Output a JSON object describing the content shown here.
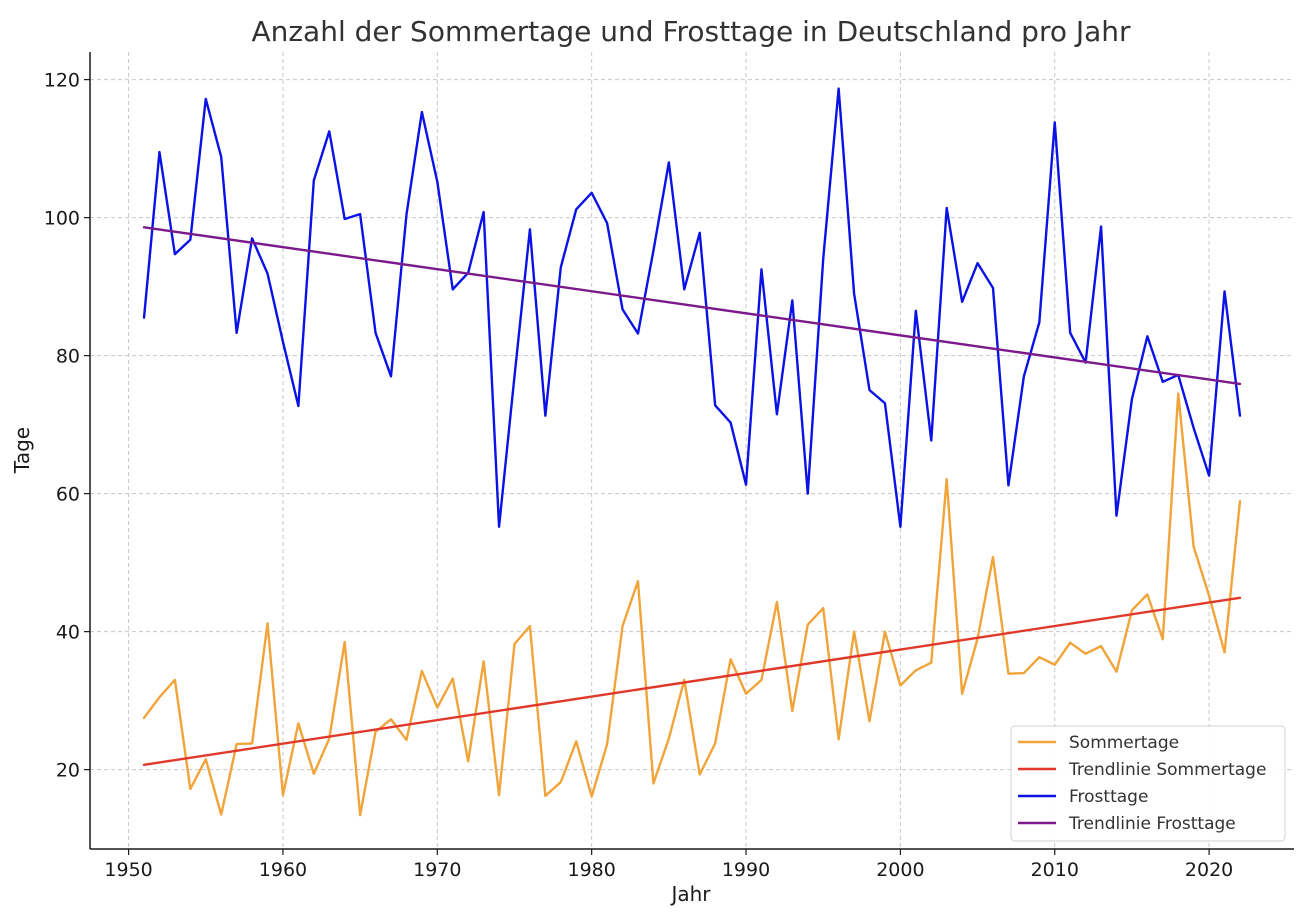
{
  "chart_data": {
    "type": "line",
    "title": "Anzahl der Sommertage und Frosttage in Deutschland pro Jahr",
    "xlabel": "Jahr",
    "ylabel": "Tage",
    "xlim": [
      1947.5,
      2025.5
    ],
    "ylim": [
      8.5,
      124
    ],
    "xticks": [
      1950,
      1960,
      1970,
      1980,
      1990,
      2000,
      2010,
      2020
    ],
    "yticks": [
      20,
      40,
      60,
      80,
      100,
      120
    ],
    "grid": true,
    "legend_position": "bottom-right",
    "x": [
      1951,
      1952,
      1953,
      1954,
      1955,
      1956,
      1957,
      1958,
      1959,
      1960,
      1961,
      1962,
      1963,
      1964,
      1965,
      1966,
      1967,
      1968,
      1969,
      1970,
      1971,
      1972,
      1973,
      1974,
      1975,
      1976,
      1977,
      1978,
      1979,
      1980,
      1981,
      1982,
      1983,
      1984,
      1985,
      1986,
      1987,
      1988,
      1989,
      1990,
      1991,
      1992,
      1993,
      1994,
      1995,
      1996,
      1997,
      1998,
      1999,
      2000,
      2001,
      2002,
      2003,
      2004,
      2005,
      2006,
      2007,
      2008,
      2009,
      2010,
      2011,
      2012,
      2013,
      2014,
      2015,
      2016,
      2017,
      2018,
      2019,
      2020,
      2021,
      2022
    ],
    "series": [
      {
        "name": "Sommertage",
        "kind": "data",
        "color": "#f0a43a",
        "values": [
          27.5,
          30.5,
          33,
          17.2,
          21.5,
          13.5,
          23.7,
          23.8,
          41.2,
          16.3,
          26.7,
          19.4,
          24.5,
          38.5,
          13.4,
          25.5,
          27.3,
          24.3,
          34.3,
          29,
          33.2,
          21.2,
          35.7,
          16.3,
          38.2,
          40.8,
          16.2,
          18.2,
          24.1,
          16.1,
          23.7,
          40.8,
          47.3,
          18,
          24.5,
          33,
          19.3,
          23.8,
          36,
          31,
          33,
          44.3,
          28.5,
          41,
          43.4,
          24.4,
          40,
          27,
          40,
          32.2,
          34.4,
          35.5,
          62.1,
          31,
          39,
          50.8,
          33.9,
          34,
          36.3,
          35.2,
          38.4,
          36.8,
          37.9,
          34.2,
          43.1,
          45.4,
          38.9,
          74.5,
          52.3,
          45.2,
          37,
          58.9
        ]
      },
      {
        "name": "Trendlinie Sommertage",
        "kind": "trend",
        "color": "#e0392b",
        "start": [
          1951,
          20.7
        ],
        "end": [
          2022,
          44.9
        ]
      },
      {
        "name": "Frosttage",
        "kind": "data",
        "color": "#0a12e6",
        "values": [
          85.5,
          109.5,
          94.7,
          96.8,
          117.2,
          108.8,
          83.3,
          97,
          91.9,
          82,
          72.7,
          105.4,
          112.5,
          99.8,
          100.5,
          83.3,
          77,
          100.4,
          115.3,
          105.2,
          89.6,
          92,
          100.8,
          55.2,
          77,
          98.3,
          71.3,
          92.8,
          101.2,
          103.6,
          99.2,
          86.7,
          83.2,
          95.2,
          108,
          89.6,
          97.8,
          72.8,
          70.3,
          61.3,
          92.5,
          71.5,
          88,
          60,
          94,
          118.7,
          89,
          75,
          73.1,
          55.2,
          86.5,
          67.7,
          101.4,
          87.8,
          93.4,
          89.8,
          61.2,
          77,
          84.8,
          113.8,
          83.3,
          79,
          98.7,
          56.8,
          73.7,
          82.8,
          76.2,
          77.2,
          69.5,
          62.6,
          89.3,
          71.3
        ]
      },
      {
        "name": "Trendlinie Frosttage",
        "kind": "trend",
        "color": "#7b1a8a",
        "start": [
          1951,
          98.6
        ],
        "end": [
          2022,
          75.9
        ]
      }
    ]
  }
}
